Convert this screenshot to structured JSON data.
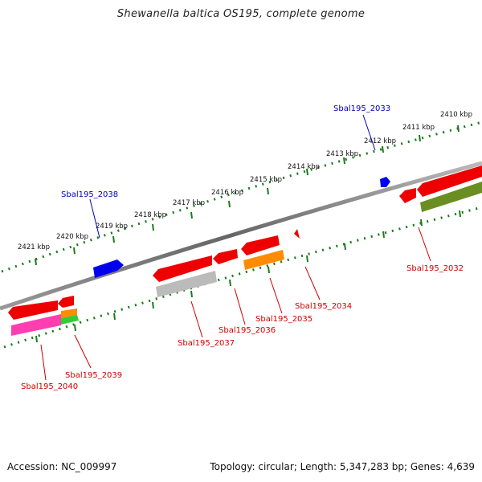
{
  "title": "Shewanella baltica OS195, complete genome",
  "footer": {
    "accession": "Accession: NC_009997",
    "summary": "Topology: circular; Length: 5,347,283 bp; Genes: 4,639"
  },
  "ticks": [
    "2410 kbp",
    "2411 kbp",
    "2412 kbp",
    "2413 kbp",
    "2414 kbp",
    "2415 kbp",
    "2416 kbp",
    "2417 kbp",
    "2418 kbp",
    "2419 kbp",
    "2420 kbp",
    "2421 kbp"
  ],
  "genes_above": [
    "Sbal195_2033",
    "Sbal195_2038"
  ],
  "genes_below": [
    "Sbal195_2032",
    "Sbal195_2034",
    "Sbal195_2035",
    "Sbal195_2036",
    "Sbal195_2037",
    "Sbal195_2039",
    "Sbal195_2040"
  ],
  "colors": {
    "backbone": "#777777",
    "forward_gene": "#0000ee",
    "reverse_gene": "#ee0000",
    "tick": "#1a7a1a",
    "label_forward": "#0000bb",
    "label_reverse": "#cc0000"
  }
}
